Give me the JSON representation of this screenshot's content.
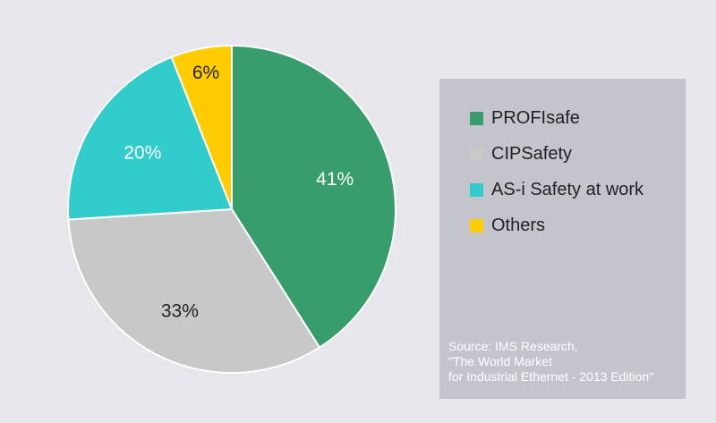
{
  "chart_data": {
    "type": "pie",
    "title": "",
    "categories": [
      "PROFIsafe",
      "CIPSafety",
      "AS-i Safety at work",
      "Others"
    ],
    "values": [
      41,
      33,
      20,
      6
    ],
    "data_labels": [
      "41%",
      "33%",
      "20%",
      "6%"
    ],
    "colors": [
      "#379d6a",
      "#c8c8c8",
      "#33cccc",
      "#ffcc00"
    ],
    "label_colors": [
      "#ffffff",
      "#222222",
      "#ffffff",
      "#222222"
    ],
    "start_angle": "12 o'clock",
    "direction": "clockwise",
    "legend_position": "right"
  },
  "legend": {
    "items": [
      {
        "label": "PROFIsafe",
        "color": "#379d6a"
      },
      {
        "label": "CIPSafety",
        "color": "#c8c8c8"
      },
      {
        "label": "AS-i Safety at work",
        "color": "#33cccc"
      },
      {
        "label": "Others",
        "color": "#ffcc00"
      }
    ]
  },
  "source": {
    "lines": [
      "Source: IMS Research,",
      "\"The World Market",
      "for Industrial Ethernet - 2013 Edition\""
    ]
  }
}
